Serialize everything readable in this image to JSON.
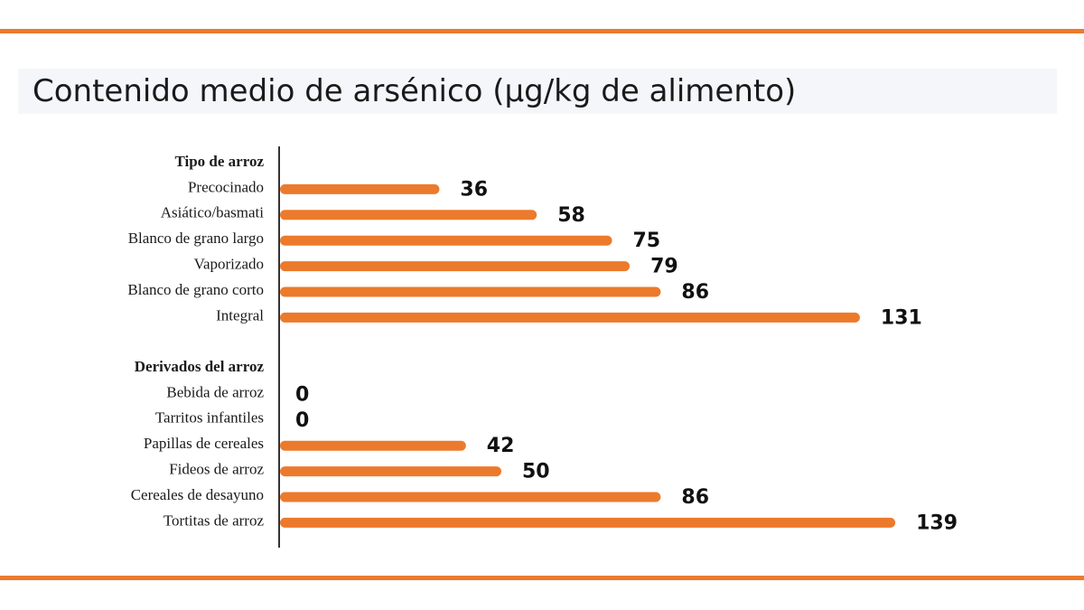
{
  "title": "Contenido medio de arsénico (µg/kg de alimento)",
  "colors": {
    "bar": "#ec7a2c",
    "rule": "#ec7a2c",
    "axis": "#333333"
  },
  "chart_data": {
    "type": "bar",
    "orientation": "horizontal",
    "title": "Contenido medio de arsénico (µg/kg de alimento)",
    "xlim": [
      0,
      150
    ],
    "grid": false,
    "legend": "none",
    "groups": [
      {
        "name": "Tipo de arroz",
        "categories": [
          "Precocinado",
          "Asiático/basmati",
          "Blanco de grano largo",
          "Vaporizado",
          "Blanco de grano corto",
          "Integral"
        ],
        "values": [
          36,
          58,
          75,
          79,
          86,
          131
        ]
      },
      {
        "name": "Derivados del arroz",
        "categories": [
          "Bebida de arroz",
          "Tarritos infantiles",
          "Papillas de cereales",
          "Fideos de arroz",
          "Cereales de desayuno",
          "Tortitas de arroz"
        ],
        "values": [
          0,
          0,
          42,
          50,
          86,
          139
        ]
      }
    ]
  }
}
